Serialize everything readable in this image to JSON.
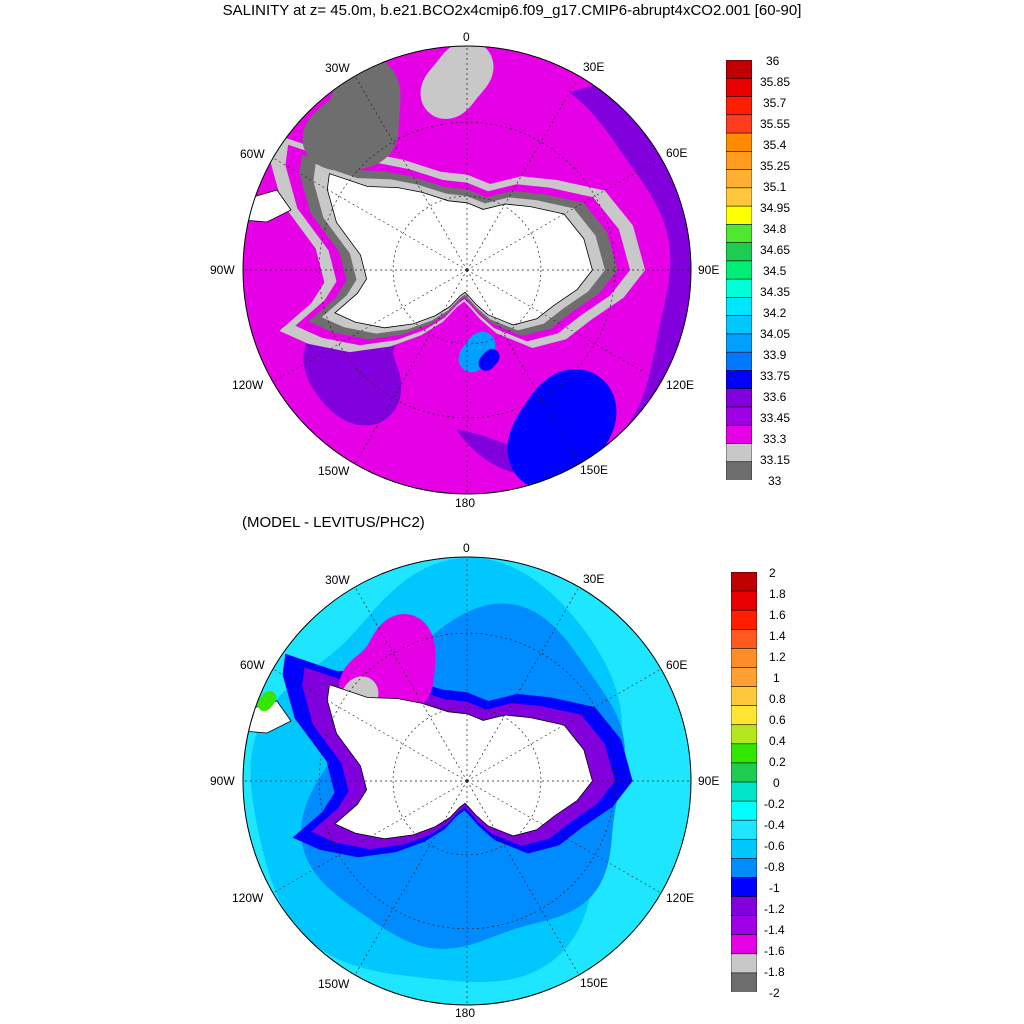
{
  "figure": {
    "title": "SALINITY at z=  45.0m, b.e21.BCO2x4cmip6.f09_g17.CMIP6-abrupt4xCO2.001 [60-90]",
    "subtitle": "(MODEL - LEVITUS/PHC2)"
  },
  "longitude_labels": [
    "0",
    "30E",
    "60E",
    "90E",
    "120E",
    "150E",
    "180",
    "150W",
    "120W",
    "90W",
    "60W",
    "30W"
  ],
  "land_color": "#ffffff",
  "chart_data": [
    {
      "type": "heatmap",
      "projection": "south polar stereographic",
      "latitude_range": [
        -90,
        -60
      ],
      "legend": {
        "placement": "right",
        "labels": [
          "36",
          "35.85",
          "35.7",
          "35.55",
          "35.4",
          "35.25",
          "35.1",
          "34.95",
          "34.8",
          "34.65",
          "34.5",
          "34.35",
          "34.2",
          "34.05",
          "33.9",
          "33.75",
          "33.6",
          "33.45",
          "33.3",
          "33.15",
          "33"
        ],
        "colors_top_to_bottom": [
          "#be0000",
          "#e60000",
          "#ff1e00",
          "#ff3c1e",
          "#ff8c00",
          "#ff9b1e",
          "#ffb032",
          "#ffc83c",
          "#ffff00",
          "#50e632",
          "#1ecc50",
          "#00ee76",
          "#00ffd6",
          "#00e6ff",
          "#00c8ff",
          "#00a0ff",
          "#0078ff",
          "#0000ff",
          "#8200dc",
          "#a000e6",
          "#e600e6",
          "#c8c8c8",
          "#6e6e6e"
        ]
      },
      "regions_outer_to_inner": [
        {
          "zone": "outer ring (~60S) Pacific and Indian sectors",
          "value_range": [
            33.3,
            33.45
          ]
        },
        {
          "zone": "open ocean south of ~60S",
          "value_range": [
            33.3,
            33.45
          ]
        },
        {
          "zone": "circumpolar band near the shelf",
          "value_range": [
            33.15,
            33.3
          ]
        },
        {
          "zone": "inner band along the coast",
          "value_range": [
            33.0,
            33.15
          ]
        },
        {
          "zone": "Ross Sea shelf",
          "value_range": [
            33.75,
            34.05
          ]
        }
      ]
    },
    {
      "type": "heatmap",
      "projection": "south polar stereographic",
      "latitude_range": [
        -90,
        -60
      ],
      "legend": {
        "placement": "right",
        "labels": [
          "2",
          "1.8",
          "1.6",
          "1.4",
          "1.2",
          "1",
          "0.8",
          "0.6",
          "0.4",
          "0.2",
          "0",
          "-0.2",
          "-0.4",
          "-0.6",
          "-0.8",
          "-1",
          "-1.2",
          "-1.4",
          "-1.6",
          "-1.8",
          "-2"
        ],
        "colors_top_to_bottom": [
          "#be0000",
          "#e60000",
          "#ff1e00",
          "#ff5a1e",
          "#ff8c28",
          "#ffa032",
          "#ffc83c",
          "#ffe632",
          "#b4e61e",
          "#32e600",
          "#1ecc50",
          "#00e6c8",
          "#00ffff",
          "#1ee6ff",
          "#00c8ff",
          "#008cff",
          "#0000ff",
          "#8200dc",
          "#a000e6",
          "#e600e6",
          "#c8c8c8",
          "#6e6e6e"
        ]
      },
      "regions_outer_to_inner": [
        {
          "zone": "outer ring (~60S)",
          "value_range": [
            -0.4,
            -0.2
          ]
        },
        {
          "zone": "middle ocean",
          "value_range": [
            -0.6,
            -0.4
          ]
        },
        {
          "zone": "inner ocean",
          "value_range": [
            -0.8,
            -0.6
          ]
        },
        {
          "zone": "band near the shelf",
          "value_range": [
            -1.0,
            -0.8
          ]
        },
        {
          "zone": "coastal band",
          "value_range": [
            -1.2,
            -1.0
          ]
        },
        {
          "zone": "Weddell Sea coast",
          "value_range": [
            -1.6,
            -1.2
          ]
        }
      ]
    }
  ]
}
